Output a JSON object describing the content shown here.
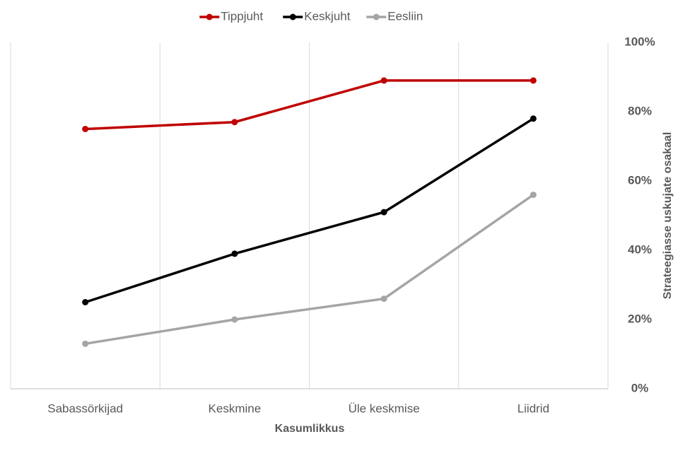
{
  "chart_data": {
    "type": "line",
    "x_label": "Kasumlikkus",
    "y_label": "Strateegiasse uskujate osakaal",
    "categories": [
      "Sabassörkijad",
      "Keskmine",
      "Üle keskmise",
      "Liidrid"
    ],
    "series": [
      {
        "name": "Tippjuht",
        "color": "#c00000",
        "values": [
          75,
          77,
          89,
          89
        ]
      },
      {
        "name": "Keskjuht",
        "color": "#000000",
        "values": [
          25,
          39,
          51,
          78
        ]
      },
      {
        "name": "Eesliin",
        "color": "#a5a5a5",
        "values": [
          13,
          20,
          26,
          56
        ]
      }
    ],
    "ylim": [
      0,
      100
    ],
    "yticks": [
      {
        "value": 0,
        "label": "0%"
      },
      {
        "value": 20,
        "label": "20%"
      },
      {
        "value": 40,
        "label": "40%"
      },
      {
        "value": 60,
        "label": "60%"
      },
      {
        "value": 80,
        "label": "80%"
      },
      {
        "value": 100,
        "label": "100%"
      }
    ],
    "y_axis_side": "right",
    "grid": true,
    "legend": "top"
  }
}
